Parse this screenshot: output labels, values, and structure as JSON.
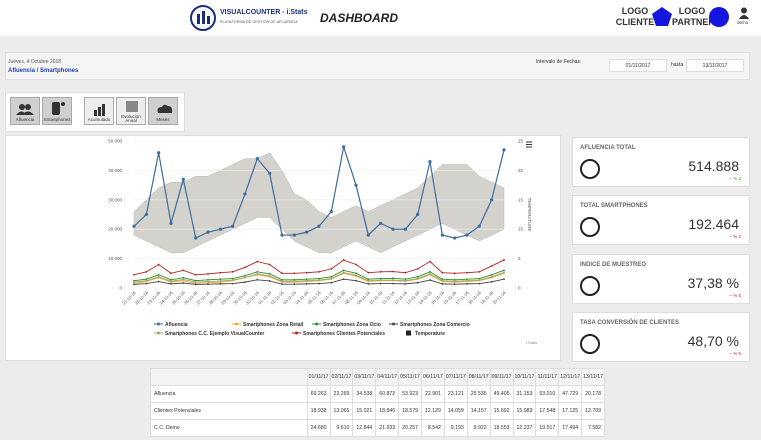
{
  "header": {
    "brand": "VISUALCOUNTER - i.Stats",
    "tagline": "PLATAFORMA DE GESTIÓN DE AFLUENCIA",
    "title": "DASHBOARD",
    "client_logo": "LOGO CLIENTE",
    "partner_logo": "LOGO PARTNER",
    "user": "demo"
  },
  "info": {
    "date": "Jueves, 4 Octubre 2018",
    "breadcrumb": "Afluencia / Smartphones",
    "range_label": "Intervalo de Fechas:",
    "from": "01/11/2017",
    "to_label": "hasta",
    "to": "13/11/2017"
  },
  "buttons": [
    "Afluencia",
    "Smartphones",
    "Acumulado",
    "Evolución Anual",
    "Meses"
  ],
  "chart_data": {
    "type": "line",
    "y2_label": "TEMPERATURE",
    "credit": "i.Stats",
    "categories": [
      "21-10-16",
      "22-10-16",
      "23-10-16",
      "24-10-16",
      "25-10-16",
      "26-10-16",
      "27-10-16",
      "28-10-16",
      "29-10-16",
      "30-10-16",
      "31-10-16",
      "01-11-16",
      "02-11-16",
      "03-11-16",
      "04-11-16",
      "05-11-16",
      "06-11-16",
      "07-11-16",
      "08-11-16",
      "09-11-16",
      "10-11-16",
      "11-11-16",
      "12-11-16",
      "13-11-16",
      "14-11-16",
      "15-11-16",
      "16-11-16",
      "17-11-16",
      "18-11-16",
      "19-11-16",
      "20-11-16"
    ],
    "ylim": [
      0,
      50000
    ],
    "yticks": [
      0,
      {
        "value": 10000,
        "label": "10.000"
      },
      {
        "value": 20000,
        "label": "20.000"
      },
      {
        "value": 30000,
        "label": "30.000"
      },
      {
        "value": 40000,
        "label": "40.000"
      },
      {
        "value": 50000,
        "label": "50.000"
      }
    ],
    "y2lim": [
      0,
      25
    ],
    "y2ticks": [
      0,
      5,
      10,
      15,
      20,
      25
    ],
    "series": [
      {
        "name": "Afluencia",
        "color": "#3d6d9c",
        "values": [
          21000,
          25000,
          46000,
          22000,
          37000,
          17000,
          19000,
          20000,
          21000,
          32000,
          44000,
          39000,
          18000,
          18000,
          19000,
          21000,
          26000,
          48000,
          35000,
          18000,
          22000,
          20000,
          20000,
          25000,
          43000,
          18000,
          17000,
          18000,
          21000,
          30000,
          47000
        ]
      },
      {
        "name": "Smartphones Zona Retail",
        "color": "#f0a830",
        "values": [
          1500,
          2200,
          3500,
          2000,
          2500,
          1500,
          1800,
          2000,
          2500,
          3500,
          4500,
          3800,
          2000,
          2000,
          2200,
          2500,
          3000,
          5000,
          4000,
          2200,
          2500,
          2500,
          2300,
          3000,
          4500,
          2200,
          2000,
          2200,
          2500,
          3500,
          5000
        ]
      },
      {
        "name": "Smartphones Zona Ocio",
        "color": "#2e8b2e",
        "values": [
          2500,
          3000,
          4500,
          2800,
          3500,
          2500,
          2800,
          3000,
          3200,
          4200,
          5500,
          4800,
          2800,
          2800,
          3000,
          3200,
          3800,
          6000,
          5000,
          3000,
          3200,
          3300,
          3000,
          3800,
          5500,
          3000,
          2800,
          3000,
          3200,
          4500,
          6000
        ]
      },
      {
        "name": "Smartphones Zona Comercio",
        "color": "#444444",
        "values": [
          1200,
          1500,
          2200,
          1400,
          1700,
          1200,
          1300,
          1400,
          1500,
          2000,
          2800,
          2400,
          1300,
          1300,
          1400,
          1500,
          1800,
          3000,
          2500,
          1400,
          1500,
          1500,
          1400,
          1800,
          2700,
          1400,
          1300,
          1400,
          1500,
          2100,
          3000
        ]
      },
      {
        "name": "Smartphones C.C. Ejemplo VisualCounter",
        "color": "#9aa86a",
        "values": [
          2000,
          2500,
          3800,
          2300,
          2900,
          2000,
          2200,
          2400,
          2700,
          3600,
          4800,
          4100,
          2300,
          2300,
          2500,
          2700,
          3200,
          5300,
          4300,
          2500,
          2700,
          2700,
          2500,
          3200,
          4800,
          2500,
          2300,
          2500,
          2700,
          3800,
          5300
        ]
      },
      {
        "name": "Smartphones Clientes Potenciales",
        "color": "#b22222",
        "values": [
          4500,
          5500,
          8000,
          5000,
          6000,
          4500,
          4800,
          5200,
          5500,
          7000,
          9000,
          8000,
          5000,
          5000,
          5200,
          5500,
          6500,
          9500,
          8000,
          5200,
          5500,
          5600,
          5200,
          6500,
          9000,
          5200,
          5000,
          5200,
          5500,
          7500,
          9500
        ]
      },
      {
        "name": "Temperature",
        "color": "#d4d2cd",
        "axis": "y2",
        "values": [
          13,
          15,
          17,
          18,
          18,
          19,
          19,
          20,
          21,
          22,
          22,
          23,
          20,
          16,
          15,
          13,
          12,
          13,
          14,
          13,
          14,
          15,
          16,
          17,
          19,
          21,
          21,
          21,
          19,
          18,
          17
        ],
        "min_values": [
          9,
          8,
          7,
          6,
          6,
          7,
          8,
          9,
          10,
          11,
          12,
          12,
          10,
          8,
          7,
          6,
          6,
          7,
          8,
          7,
          6,
          7,
          8,
          9,
          10,
          11,
          10,
          9,
          8,
          9,
          10
        ]
      }
    ]
  },
  "cards": [
    {
      "title": "AFLUENCIA TOTAL",
      "value": "514.888",
      "change": "-- % 2"
    },
    {
      "title": "TOTAL SMARTPHONES",
      "value": "192.464",
      "change": "-- % 2"
    },
    {
      "title": "INDICE DE MUESTREO",
      "value": "37,38 %",
      "change": "-- % 5"
    },
    {
      "title": "TASA CONVERSIÓN DE CLIENTES",
      "value": "48,70 %",
      "change": "-- % 5"
    }
  ],
  "table": {
    "columns": [
      "01/11/17",
      "02/11/17",
      "03/11/17",
      "04/11/17",
      "05/11/17",
      "06/11/17",
      "07/11/17",
      "08/11/17",
      "09/11/17",
      "10/11/17",
      "11/11/17",
      "12/11/17",
      "13/11/17"
    ],
    "rows": [
      [
        "Afluencia",
        "69.263",
        "23.269",
        "34.538",
        "60.872",
        "53.923",
        "22.901",
        "23.121",
        "25.535",
        "49.405",
        "31.153",
        "53.010",
        "47.729",
        "20.178"
      ],
      [
        "Clientes Potenciales",
        "18.938",
        "13.065",
        "15.021",
        "18.846",
        "18.579",
        "12.129",
        "14.059",
        "14.157",
        "15.692",
        "15.983",
        "17.548",
        "17.125",
        "12.709"
      ],
      [
        "C.C. Demo",
        "24.680",
        "9.610",
        "12.844",
        "21.933",
        "20.257",
        "8.542",
        "9.193",
        "9.922",
        "18.553",
        "12.237",
        "19.517",
        "17.494",
        "7.582"
      ]
    ]
  }
}
